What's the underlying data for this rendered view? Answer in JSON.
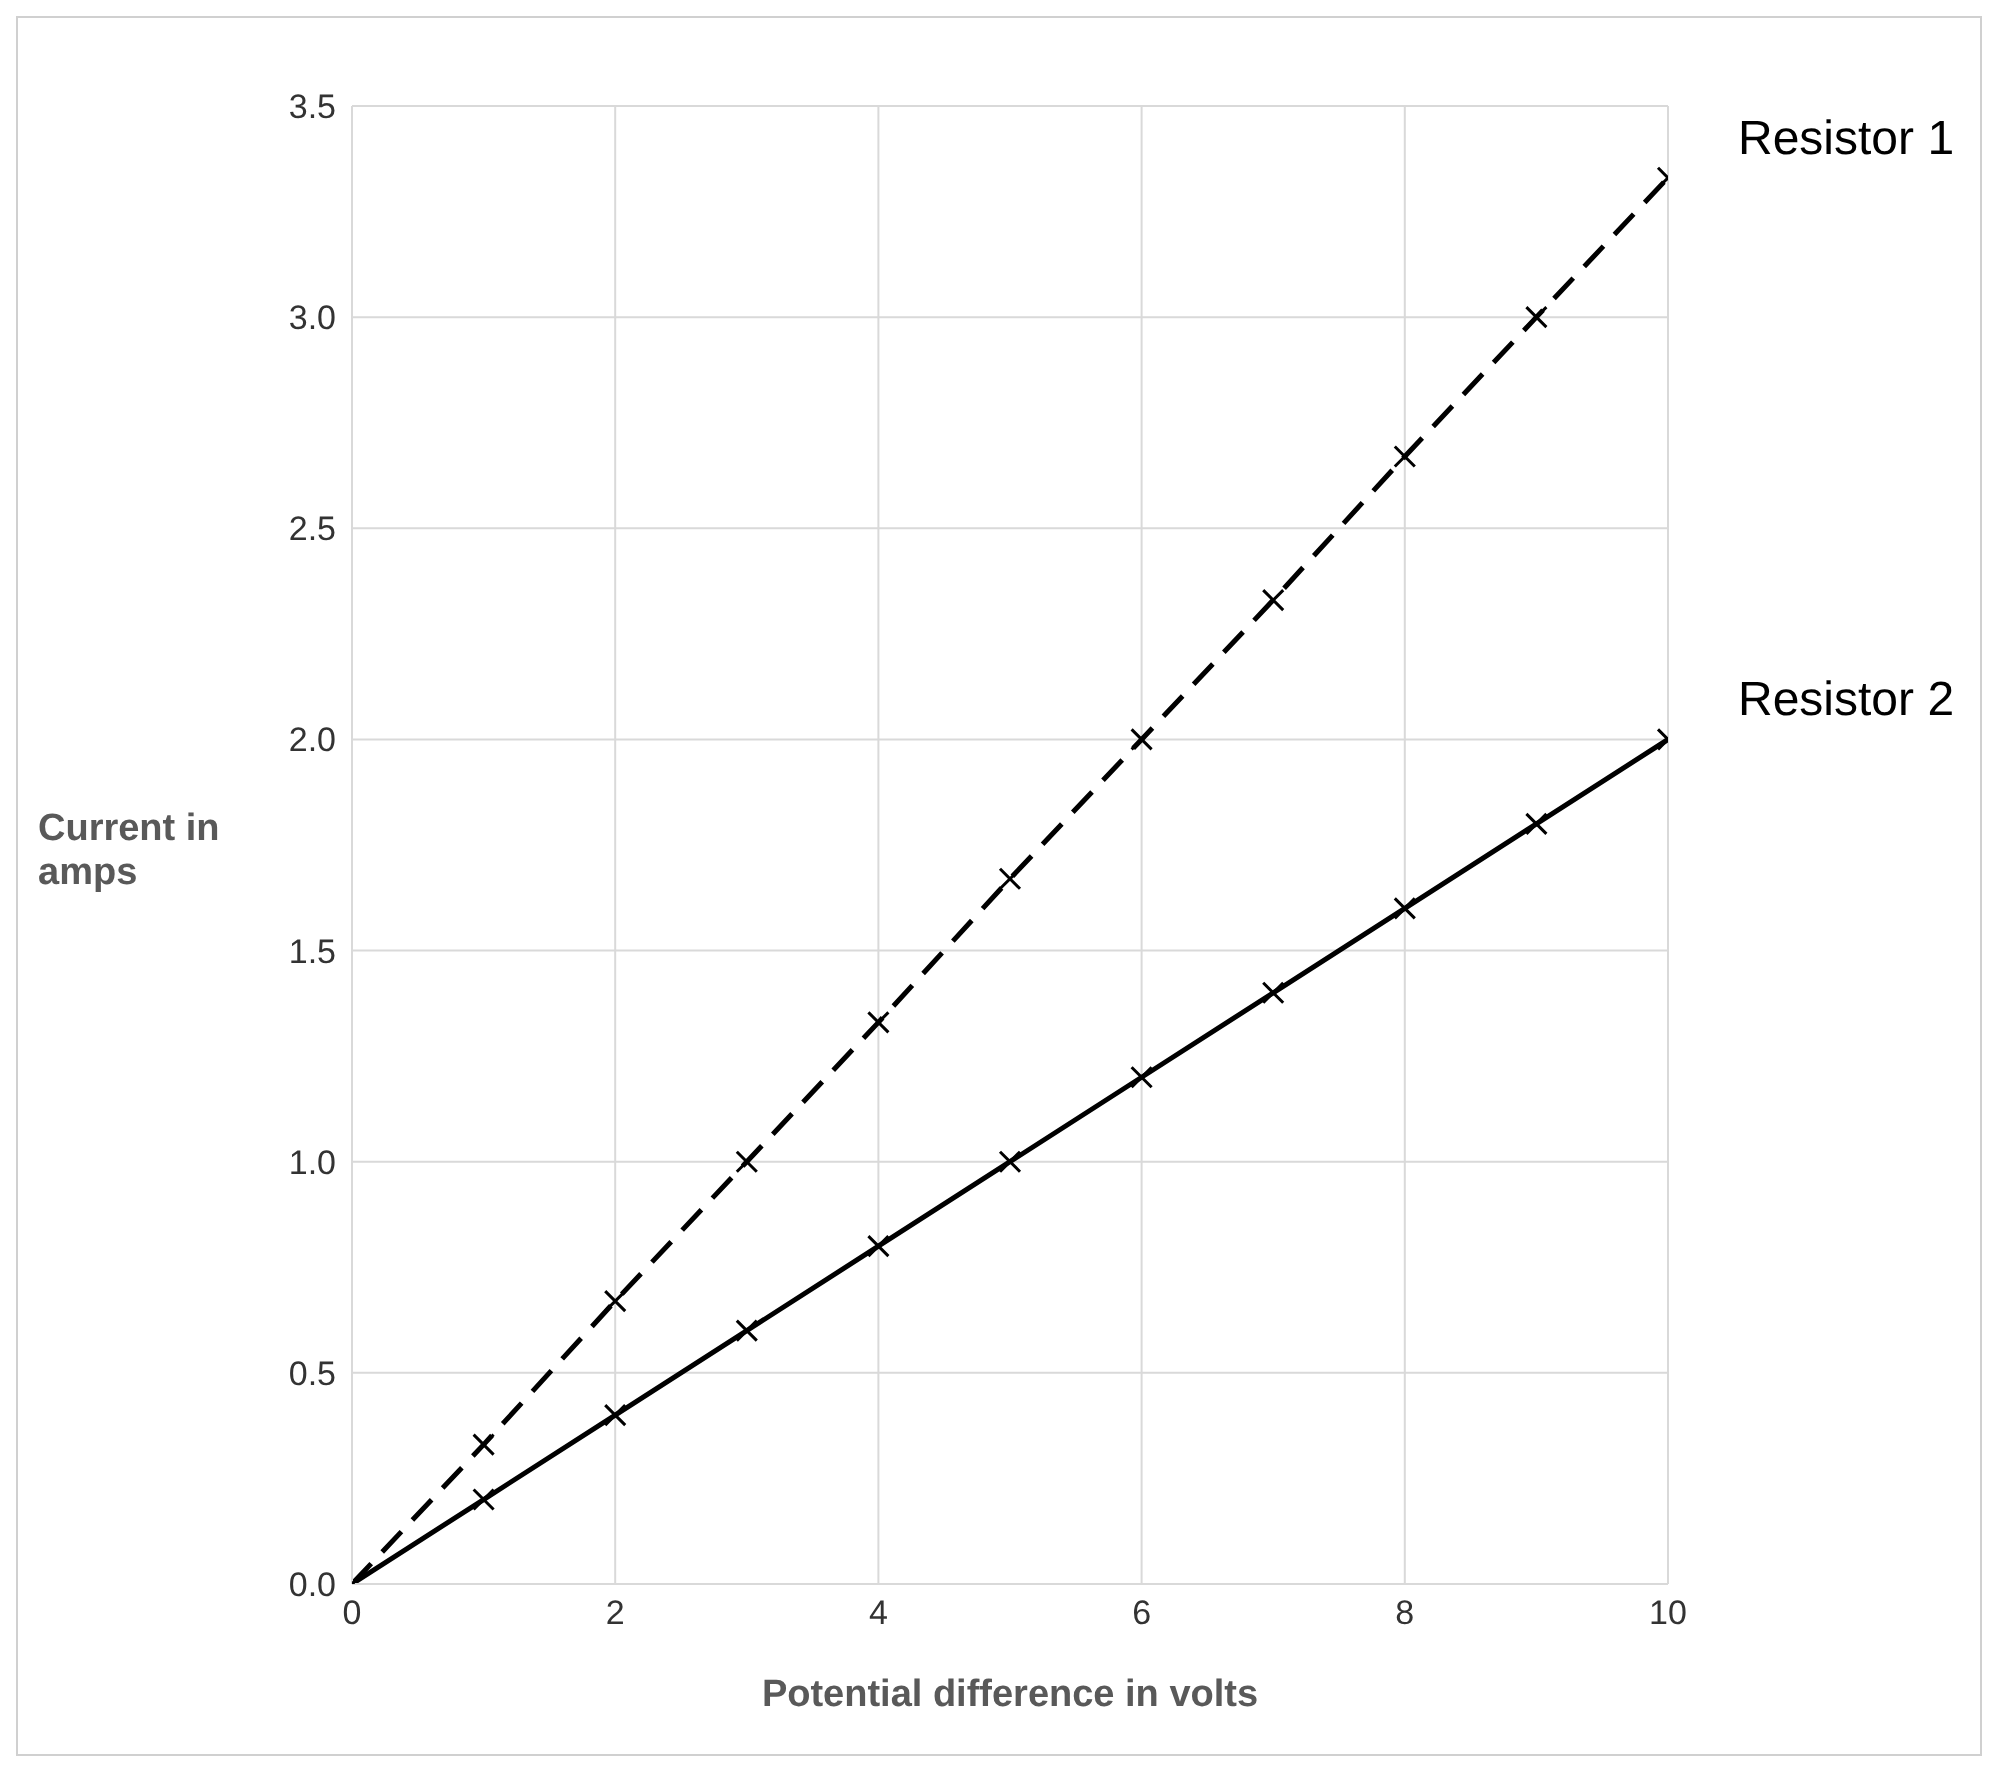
{
  "chart_data": {
    "type": "line",
    "xlabel": "Potential difference in volts",
    "ylabel": "Current in amps",
    "x": [
      0,
      1,
      2,
      3,
      4,
      5,
      6,
      7,
      8,
      9,
      10
    ],
    "series": [
      {
        "name": "Resistor 1",
        "color": "#000000",
        "line_style": "dashed",
        "values": [
          0,
          0.33,
          0.67,
          1.0,
          1.33,
          1.67,
          2.0,
          2.33,
          2.67,
          3.0,
          3.33
        ]
      },
      {
        "name": "Resistor 2",
        "color": "#000000",
        "line_style": "solid",
        "values": [
          0,
          0.2,
          0.4,
          0.6,
          0.8,
          1.0,
          1.2,
          1.4,
          1.6,
          1.8,
          2.0
        ]
      }
    ],
    "xlim": [
      0,
      10
    ],
    "xticks": [
      0,
      2,
      4,
      6,
      8,
      10
    ],
    "ylim": [
      0,
      3.5
    ],
    "yticks": [
      {
        "value": 0,
        "label": "0.0"
      },
      {
        "value": 0.5,
        "label": "0.5"
      },
      {
        "value": 1,
        "label": "1.0"
      },
      {
        "value": 1.5,
        "label": "1.5"
      },
      {
        "value": 2,
        "label": "2.0"
      },
      {
        "value": 2.5,
        "label": "2.5"
      },
      {
        "value": 3,
        "label": "3.0"
      },
      {
        "value": 3.5,
        "label": "3.5"
      }
    ],
    "grid": true,
    "legend": false,
    "marker": "cross"
  }
}
